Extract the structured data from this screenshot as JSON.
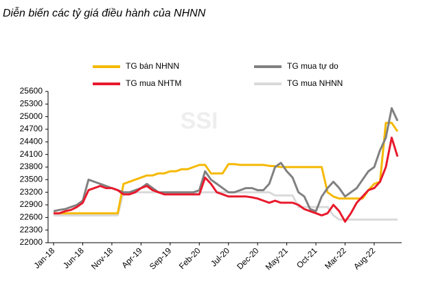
{
  "chart_data": {
    "type": "line",
    "title": "Diễn biến các tỷ giá điều hành của NHNN",
    "watermark": "SSI",
    "categories": [
      "Jan-18",
      null,
      null,
      null,
      null,
      "Jun-18",
      null,
      null,
      null,
      null,
      "Nov-18",
      null,
      null,
      null,
      null,
      "Apr-19",
      null,
      null,
      null,
      null,
      "Sep-19",
      null,
      null,
      null,
      null,
      "Feb-20",
      null,
      null,
      null,
      null,
      "Jul-20",
      null,
      null,
      null,
      null,
      "Dec-20",
      null,
      null,
      null,
      null,
      "May-21",
      null,
      null,
      null,
      null,
      "Oct-21",
      null,
      null,
      null,
      null,
      "Mar-22",
      null,
      null,
      null,
      null,
      "Aug-22",
      null,
      null,
      null,
      null
    ],
    "series": [
      {
        "name": "TG bán NHNN",
        "color": "#f5b800",
        "values": [
          22700,
          22700,
          22700,
          22700,
          22700,
          22700,
          22700,
          22700,
          22700,
          22700,
          22700,
          22700,
          23400,
          23450,
          23500,
          23550,
          23600,
          23600,
          23650,
          23650,
          23700,
          23700,
          23750,
          23750,
          23800,
          23850,
          23850,
          23650,
          23650,
          23650,
          23870,
          23870,
          23850,
          23850,
          23850,
          23850,
          23850,
          23830,
          23820,
          23800,
          23800,
          23800,
          23800,
          23800,
          23800,
          23800,
          23800,
          23200,
          23100,
          23050,
          23050,
          23050,
          23050,
          23050,
          23250,
          23400,
          23450,
          24850,
          24850,
          24650
        ]
      },
      {
        "name": "TG mua tự do",
        "color": "#808080",
        "values": [
          22750,
          22780,
          22800,
          22850,
          22900,
          23000,
          23500,
          23450,
          23400,
          23350,
          23300,
          23250,
          23200,
          23200,
          23250,
          23300,
          23400,
          23300,
          23200,
          23200,
          23200,
          23200,
          23200,
          23200,
          23200,
          23250,
          23700,
          23500,
          23400,
          23300,
          23200,
          23200,
          23250,
          23300,
          23300,
          23250,
          23250,
          23400,
          23800,
          23900,
          23700,
          23550,
          23200,
          23100,
          22800,
          22750,
          23100,
          23300,
          23450,
          23300,
          23100,
          23200,
          23300,
          23500,
          23700,
          23800,
          24200,
          24500,
          25200,
          24900
        ]
      },
      {
        "name": "TG mua NHTM",
        "color": "#e8192c",
        "values": [
          22700,
          22700,
          22750,
          22780,
          22850,
          22950,
          23250,
          23300,
          23350,
          23300,
          23300,
          23250,
          23150,
          23150,
          23200,
          23300,
          23350,
          23250,
          23200,
          23150,
          23150,
          23150,
          23150,
          23150,
          23150,
          23150,
          23550,
          23400,
          23200,
          23150,
          23100,
          23100,
          23100,
          23100,
          23080,
          23050,
          23000,
          22950,
          23000,
          22950,
          22950,
          22950,
          22900,
          22800,
          22750,
          22700,
          22650,
          22700,
          22900,
          22750,
          22500,
          22700,
          22950,
          23100,
          23250,
          23300,
          23450,
          23800,
          24500,
          24050
        ]
      },
      {
        "name": "TG mua NHNN",
        "color": "#d9d9d9",
        "values": [
          22650,
          22650,
          22650,
          22650,
          22650,
          22650,
          22650,
          22650,
          22650,
          22650,
          22650,
          22650,
          23200,
          23200,
          23200,
          23200,
          23200,
          23200,
          23200,
          23200,
          23200,
          23200,
          23200,
          23200,
          23200,
          23200,
          23200,
          23200,
          23200,
          23200,
          23200,
          23200,
          23200,
          23200,
          23200,
          23200,
          23200,
          23200,
          23125,
          23125,
          23125,
          23125,
          22850,
          22850,
          22850,
          22850,
          22850,
          22850,
          22650,
          22550,
          22550,
          22550,
          22550,
          22550,
          22550,
          22550,
          22550,
          22550,
          22550,
          22550
        ]
      }
    ],
    "ylim": [
      22000,
      25600
    ],
    "yticks": [
      22000,
      22300,
      22600,
      22900,
      23200,
      23500,
      23800,
      24100,
      24400,
      24700,
      25000,
      25300,
      25600
    ]
  }
}
